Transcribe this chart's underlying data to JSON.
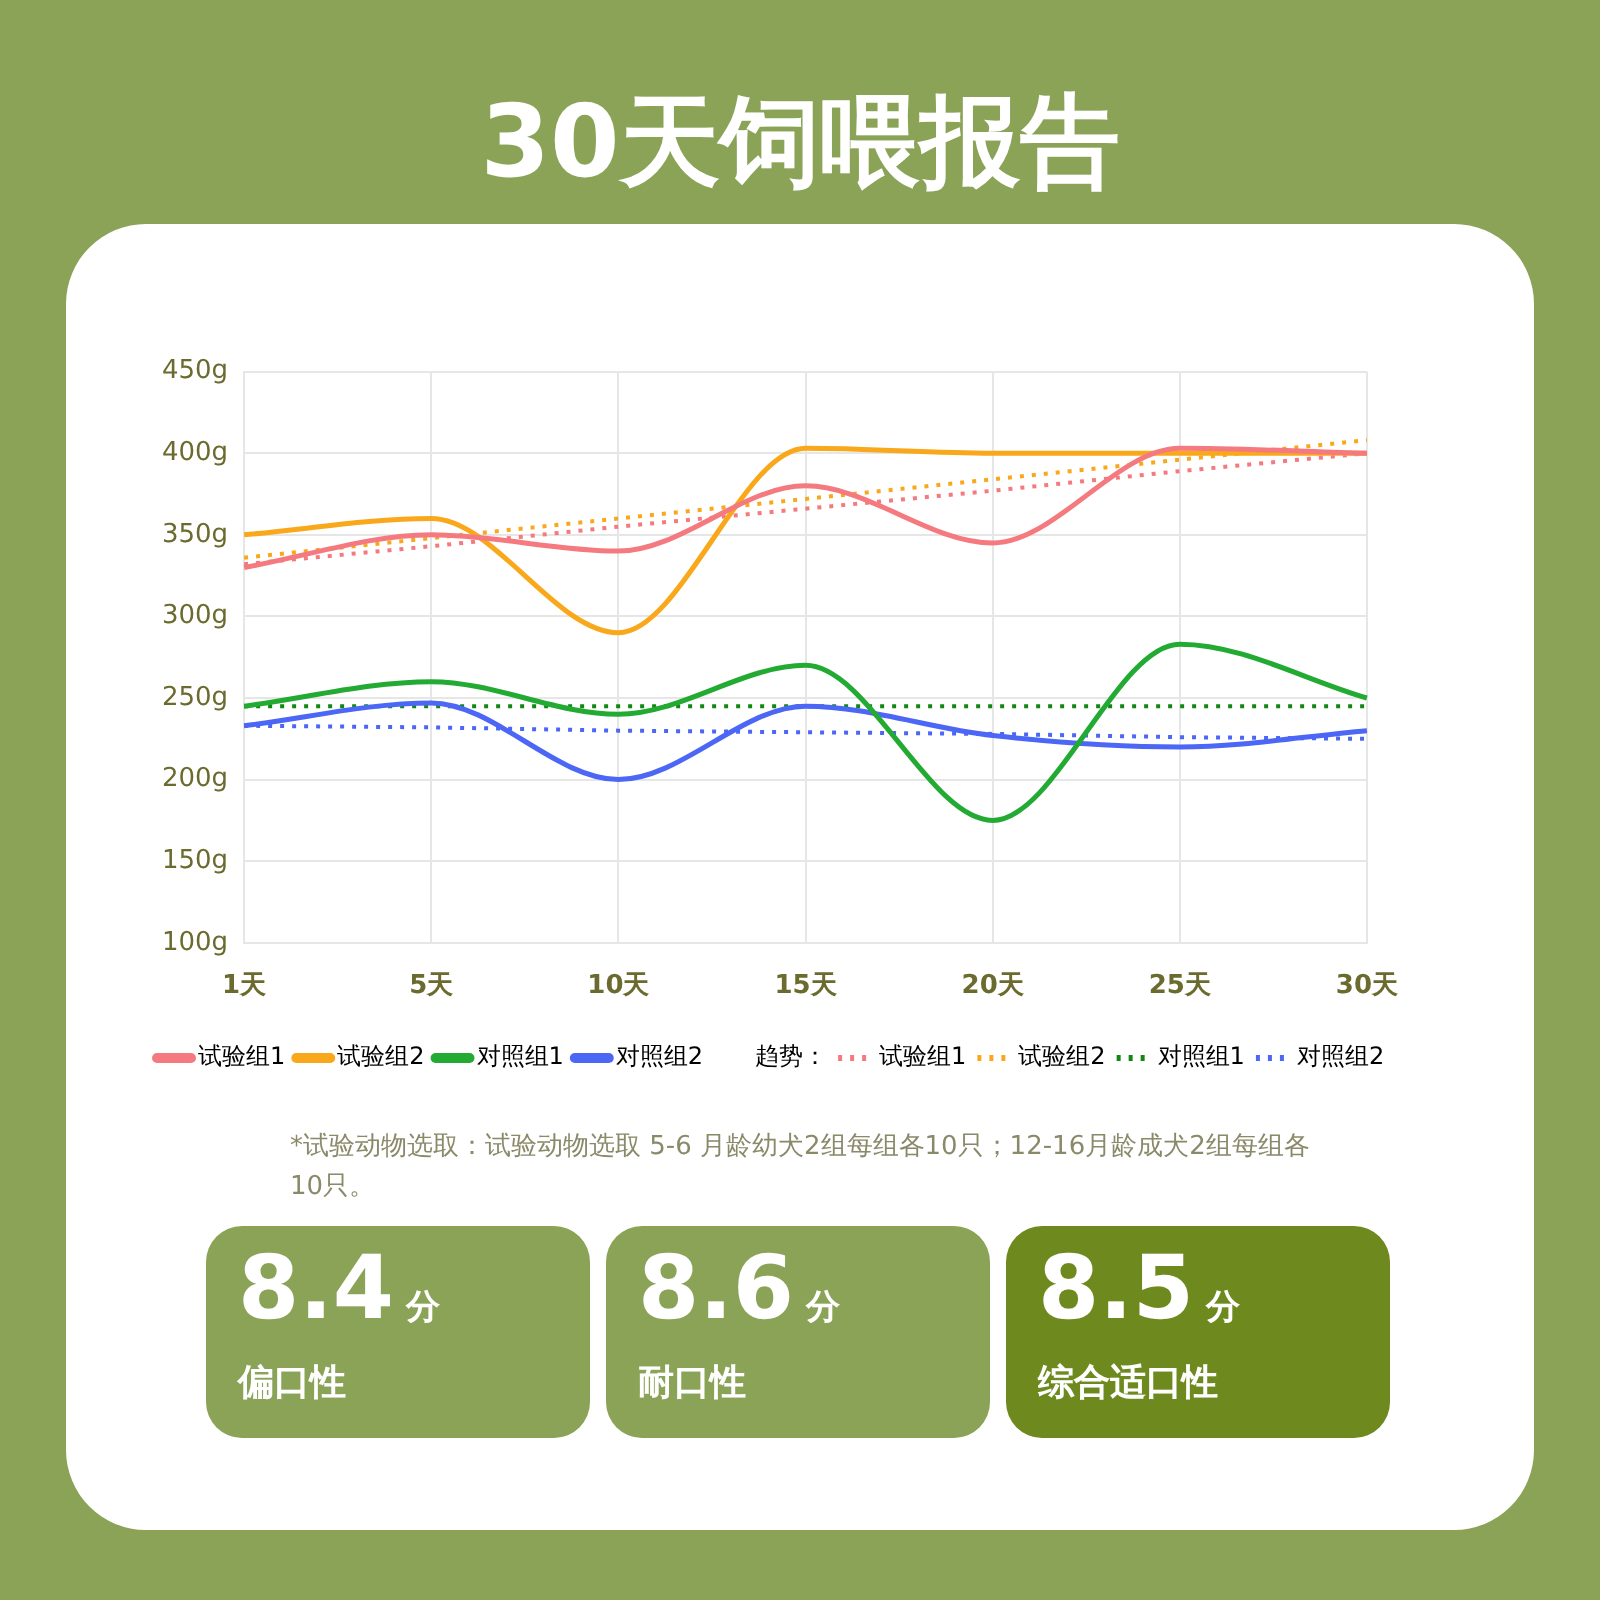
{
  "chart_data": [
    {
      "type": "line",
      "title": "30天饲喂报告",
      "categories": [
        "1天",
        "5天",
        "10天",
        "15天",
        "20天",
        "25天",
        "30天"
      ],
      "series": [
        {
          "name": "试验组1",
          "color": "#f47a7f",
          "values": [
            330,
            350,
            340,
            380,
            345,
            403,
            400
          ]
        },
        {
          "name": "试验组2",
          "color": "#f9a81b",
          "values": [
            350,
            360,
            290,
            403,
            400,
            400,
            400
          ]
        },
        {
          "name": "对照组1",
          "color": "#22aa33",
          "values": [
            245,
            260,
            240,
            270,
            175,
            283,
            250
          ]
        },
        {
          "name": "对照组2",
          "color": "#4c66f5",
          "values": [
            233,
            247,
            200,
            245,
            227,
            220,
            230
          ]
        },
        {
          "name": "试验组1",
          "color": "#f47a7f",
          "line_style": "dotted",
          "values": [
            332,
            343,
            355,
            366,
            377,
            389,
            400
          ]
        },
        {
          "name": "试验组2",
          "color": "#f9a81b",
          "line_style": "dotted",
          "values": [
            336,
            348,
            360,
            372,
            384,
            396,
            408
          ]
        },
        {
          "name": "对照组1",
          "color": "#118811",
          "line_style": "dotted",
          "values": [
            245,
            245,
            245,
            245,
            245,
            245,
            245
          ]
        },
        {
          "name": "对照组2",
          "color": "#4c66f5",
          "line_style": "dotted",
          "values": [
            233,
            232,
            230,
            229,
            228,
            226,
            225
          ]
        }
      ],
      "legend_title": "趋势：",
      "ylim": [
        100,
        450
      ],
      "yticks": [
        {
          "value": 100,
          "label": "100g"
        },
        {
          "value": 150,
          "label": "150g"
        },
        {
          "value": 200,
          "label": "200g"
        },
        {
          "value": 250,
          "label": "250g"
        },
        {
          "value": 300,
          "label": "300g"
        },
        {
          "value": 350,
          "label": "350g"
        },
        {
          "value": 400,
          "label": "400g"
        },
        {
          "value": 450,
          "label": "450g"
        }
      ],
      "grid": true,
      "legend": "bottom",
      "marker": "none",
      "line_style": "solid",
      "annotations": [
        "*试验动物选取：试验动物选取 5-6 月龄幼犬2组每组各10只；12-16月龄成犬2组每组各10只。"
      ]
    },
    {
      "type": "other",
      "annotations": [
        "8.4",
        "分",
        "偏口性",
        "8.6",
        "分",
        "耐口性",
        "8.5",
        "分",
        "综合适口性"
      ]
    }
  ]
}
